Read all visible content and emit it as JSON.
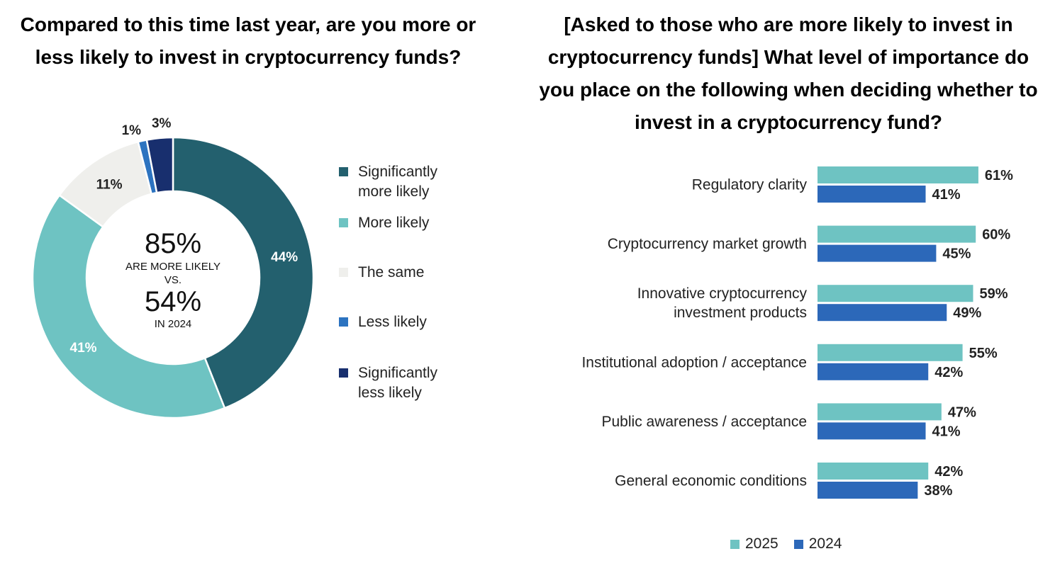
{
  "left_title": "Compared to this time last year, are you more or less likely to invest in cryptocurrency funds?",
  "right_title": "[Asked to those who are more likely to invest in cryptocurrency funds] What level of importance do you place on the following when deciding whether to invest in a cryptocurrency fund?",
  "chart_data": [
    {
      "type": "pie",
      "variant": "donut",
      "title": "Compared to this time last year, are you more or less likely to invest in cryptocurrency funds?",
      "labels": [
        "Significantly more likely",
        "More likely",
        "The same",
        "Less likely",
        "Significantly less likely"
      ],
      "values": [
        44,
        41,
        11,
        1,
        3
      ],
      "value_labels": [
        "44%",
        "41%",
        "11%",
        "1%",
        "3%"
      ],
      "colors": [
        "#23606E",
        "#6EC3C2",
        "#EFEFEC",
        "#2C73C0",
        "#182F6E"
      ],
      "legend_position": "right",
      "center_text": {
        "big1": "85%",
        "line1": "ARE MORE LIKELY",
        "line2": "VS.",
        "big2": "54%",
        "line3": "IN 2024"
      }
    },
    {
      "type": "bar",
      "orientation": "horizontal",
      "title": "[Asked to those who are more likely to invest in cryptocurrency funds] What level of importance do you place on the following when deciding whether to invest in a cryptocurrency fund?",
      "categories": [
        [
          "Regulatory clarity"
        ],
        [
          "Cryptocurrency market growth"
        ],
        [
          "Innovative cryptocurrency",
          "investment products"
        ],
        [
          "Institutional adoption / acceptance"
        ],
        [
          "Public awareness / acceptance"
        ],
        [
          "General economic conditions"
        ]
      ],
      "series": [
        {
          "name": "2025",
          "color": "#6EC3C2",
          "values": [
            61,
            60,
            59,
            55,
            47,
            42
          ],
          "labels": [
            "61%",
            "60%",
            "59%",
            "55%",
            "47%",
            "42%"
          ]
        },
        {
          "name": "2024",
          "color": "#2C68B9",
          "values": [
            41,
            45,
            49,
            42,
            41,
            38
          ],
          "labels": [
            "41%",
            "45%",
            "49%",
            "42%",
            "41%",
            "38%"
          ]
        }
      ],
      "grid": false,
      "legend_position": "bottom"
    }
  ]
}
